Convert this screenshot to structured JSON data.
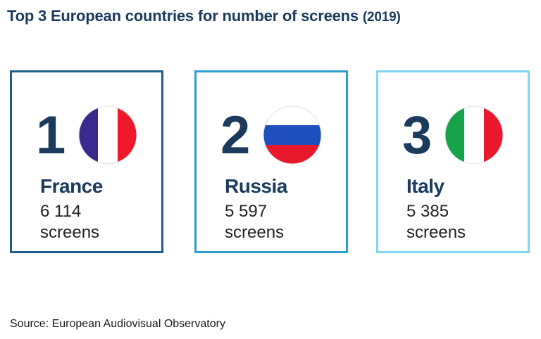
{
  "title": {
    "main": "Top 3 European countries for number of screens",
    "year": "(2019)"
  },
  "source": "Source: European Audiovisual Observatory",
  "chart_data": {
    "type": "table",
    "title": "Top 3 European countries for number of screens (2019)",
    "unit": "screens",
    "rows": [
      {
        "rank": "1",
        "country": "France",
        "value": 6114,
        "value_label": "6 114",
        "unit": "screens",
        "border_color": "#1f5c8a",
        "flag": "france-flag"
      },
      {
        "rank": "2",
        "country": "Russia",
        "value": 5597,
        "value_label": "5 597",
        "unit": "screens",
        "border_color": "#2a9fcf",
        "flag": "russia-flag"
      },
      {
        "rank": "3",
        "country": "Italy",
        "value": 5385,
        "value_label": "5 385",
        "unit": "screens",
        "border_color": "#7fd6ee",
        "flag": "italy-flag"
      }
    ]
  },
  "colors": {
    "france_blue": "#3a2a8f",
    "france_white": "#ffffff",
    "france_red": "#f0192b",
    "russia_white": "#ffffff",
    "russia_blue": "#1f4fbf",
    "russia_red": "#e8192c",
    "italy_green": "#16a34a",
    "italy_white": "#ffffff",
    "italy_red": "#e8192c"
  }
}
